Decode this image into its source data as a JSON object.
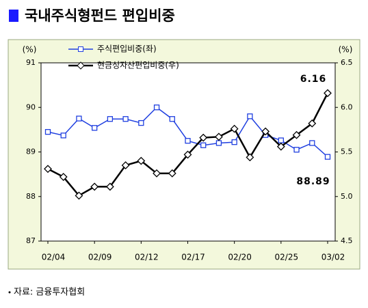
{
  "chart_data": {
    "type": "line",
    "title": "국내주식형펀드 편입비중",
    "source": "자료: 금융투자협회",
    "ylabel": "(%)",
    "y2label": "(%)",
    "categories": [
      "02/04",
      null,
      null,
      "02/09",
      null,
      null,
      "02/12",
      null,
      null,
      "02/17",
      null,
      null,
      "02/20",
      null,
      null,
      "02/25",
      null,
      null,
      "03/02"
    ],
    "series": [
      {
        "name": "주식편입비중(좌)",
        "color": "#1f3fe0",
        "marker": "square",
        "values": [
          89.45,
          89.37,
          89.75,
          89.54,
          89.74,
          89.74,
          89.65,
          90.0,
          89.74,
          89.25,
          89.15,
          89.2,
          89.22,
          89.8,
          89.38,
          89.26,
          89.05,
          89.2,
          88.89
        ]
      },
      {
        "name": "현금성자산편입비중(우)",
        "color": "#000000",
        "marker": "diamond",
        "axis": "y2",
        "values": [
          5.31,
          5.22,
          5.01,
          5.11,
          5.11,
          5.35,
          5.4,
          5.26,
          5.26,
          5.47,
          5.66,
          5.67,
          5.76,
          5.44,
          5.73,
          5.56,
          5.69,
          5.82,
          6.16
        ]
      }
    ],
    "ylim": [
      87,
      91
    ],
    "yticks": [
      87,
      88,
      89,
      90,
      91
    ],
    "y2lim": [
      4.5,
      6.5
    ],
    "y2ticks": [
      4.5,
      {
        "value": 5,
        "label": "5.0"
      },
      5.5,
      {
        "value": 6,
        "label": "6.0"
      },
      6.5
    ],
    "grid": false,
    "legend": "top-left"
  }
}
